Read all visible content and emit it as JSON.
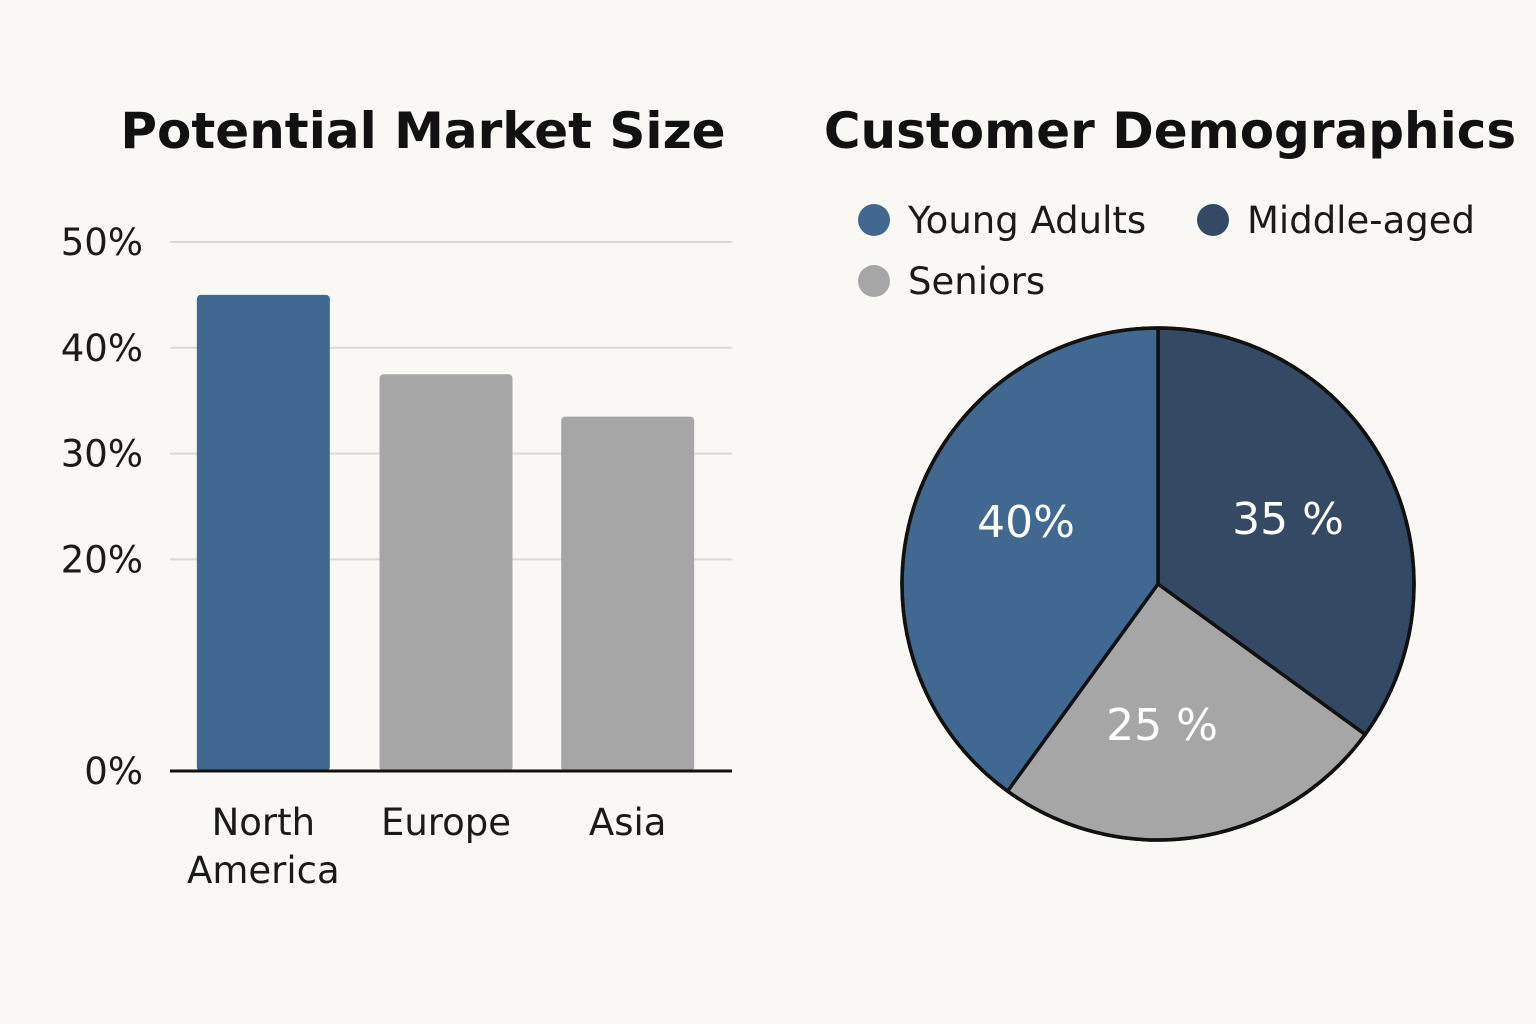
{
  "chart_data": [
    {
      "type": "bar",
      "title": "Potential Market Size",
      "xlabel": "",
      "ylabel": "",
      "categories": [
        "North America",
        "Europe",
        "Asia"
      ],
      "category_lines": [
        [
          "North",
          "America"
        ],
        [
          "Europe"
        ],
        [
          "Asia"
        ]
      ],
      "values": [
        45,
        37.5,
        33.5
      ],
      "ylim": [
        0,
        50
      ],
      "yticks": [
        0,
        20,
        30,
        40,
        50
      ],
      "ytick_labels": [
        "0%",
        "20%",
        "30%",
        "40%",
        "50%"
      ],
      "grid": true,
      "bar_colors": [
        "#406890",
        "#a6a6a6",
        "#a6a6a6"
      ]
    },
    {
      "type": "pie",
      "title": "Customer Demographics",
      "legend_position": "top",
      "slices": [
        {
          "name": "Young Adults",
          "value": 40,
          "label": "40%",
          "color": "#406890"
        },
        {
          "name": "Middle-aged",
          "value": 35,
          "label": "35 %",
          "color": "#344a64"
        },
        {
          "name": "Seniors",
          "value": 25,
          "label": "25 %",
          "color": "#a6a6a6"
        }
      ]
    }
  ],
  "colors": {
    "background": "#f9f8f4",
    "gridline": "#d9d9d6",
    "axis": "#111111",
    "pie_outline": "#111111"
  }
}
